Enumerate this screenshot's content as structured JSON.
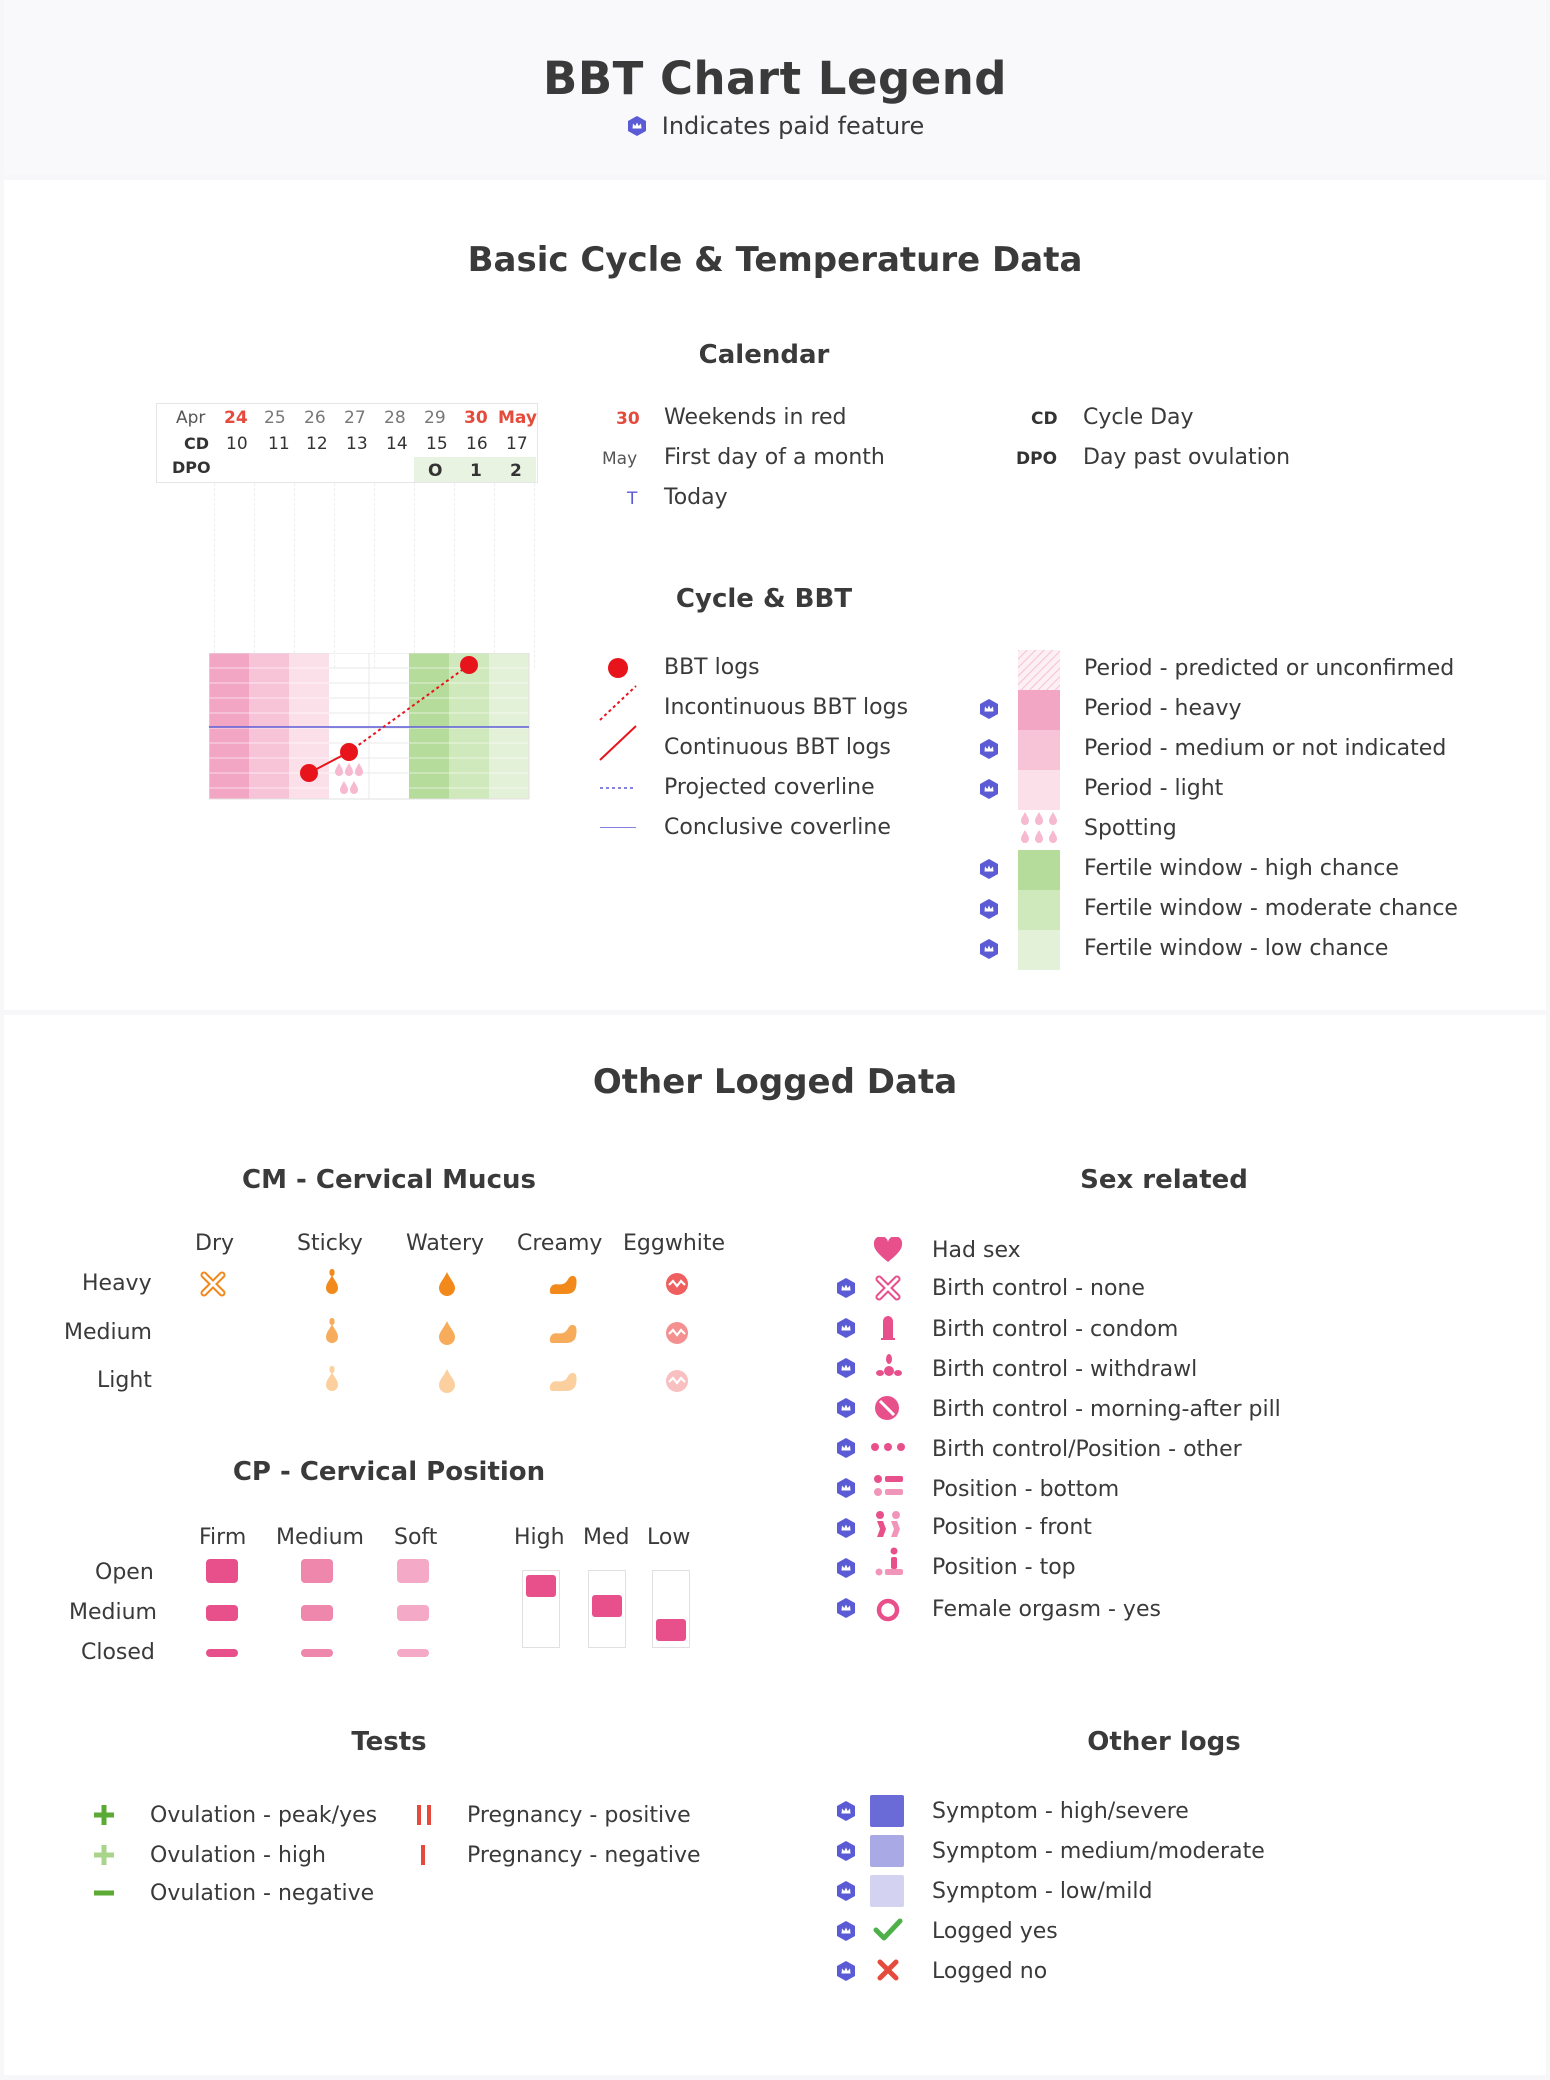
{
  "title": "BBT Chart Legend",
  "paid_note": "Indicates paid feature",
  "basic_section": {
    "title": "Basic Cycle & Temperature Data",
    "calendar": {
      "title": "Calendar",
      "months": [
        "Apr",
        "May"
      ],
      "days": [
        "24",
        "25",
        "26",
        "27",
        "28",
        "29",
        "30"
      ],
      "cd_label": "CD",
      "cd_values": [
        "10",
        "11",
        "12",
        "13",
        "14",
        "15",
        "16",
        "17"
      ],
      "dpo_label": "DPO",
      "dpo_values": [
        "O",
        "1",
        "2"
      ],
      "legend": [
        {
          "key": "30",
          "text": "Weekends in red"
        },
        {
          "key": "May",
          "text": "First day of a month"
        },
        {
          "key": "T",
          "text": "Today"
        },
        {
          "key": "CD",
          "text": "Cycle Day"
        },
        {
          "key": "DPO",
          "text": "Day past ovulation"
        }
      ]
    },
    "cycle_bbt": {
      "title": "Cycle & BBT",
      "line_legend": [
        "BBT logs",
        "Incontinuous BBT logs",
        "Continuous BBT logs",
        "Projected coverline",
        "Conclusive coverline"
      ],
      "fill_legend": [
        {
          "text": "Period - predicted or unconfirmed",
          "paid": false
        },
        {
          "text": "Period - heavy",
          "paid": true
        },
        {
          "text": "Period - medium or not indicated",
          "paid": true
        },
        {
          "text": "Period - light",
          "paid": true
        },
        {
          "text": "Spotting",
          "paid": false
        },
        {
          "text": "Fertile window - high chance",
          "paid": true
        },
        {
          "text": "Fertile window - moderate chance",
          "paid": true
        },
        {
          "text": "Fertile window - low chance",
          "paid": true
        }
      ]
    }
  },
  "other_section": {
    "title": "Other Logged Data",
    "cm": {
      "title": "CM - Cervical Mucus",
      "columns": [
        "Dry",
        "Sticky",
        "Watery",
        "Creamy",
        "Eggwhite"
      ],
      "rows": [
        "Heavy",
        "Medium",
        "Light"
      ]
    },
    "cp": {
      "title": "CP - Cervical Position",
      "columns": [
        "Firm",
        "Medium",
        "Soft"
      ],
      "rows": [
        "Open",
        "Medium",
        "Closed"
      ],
      "height_columns": [
        "High",
        "Med",
        "Low"
      ]
    },
    "tests": {
      "title": "Tests",
      "left": [
        "Ovulation - peak/yes",
        "Ovulation - high",
        "Ovulation - negative"
      ],
      "right": [
        "Pregnancy - positive",
        "Pregnancy - negative"
      ]
    },
    "sex": {
      "title": "Sex related",
      "items": [
        {
          "icon": "heart-icon",
          "text": "Had sex",
          "paid": false
        },
        {
          "icon": "x-outline-icon",
          "text": "Birth control - none",
          "paid": true
        },
        {
          "icon": "condom-icon",
          "text": "Birth control - condom",
          "paid": true
        },
        {
          "icon": "withdrawal-icon",
          "text": "Birth control - withdrawl",
          "paid": true
        },
        {
          "icon": "pill-icon",
          "text": "Birth control - morning-after pill",
          "paid": true
        },
        {
          "icon": "dots-icon",
          "text": "Birth control/Position - other",
          "paid": true
        },
        {
          "icon": "position-bottom-icon",
          "text": "Position - bottom",
          "paid": true
        },
        {
          "icon": "position-front-icon",
          "text": "Position - front",
          "paid": true
        },
        {
          "icon": "position-top-icon",
          "text": "Position - top",
          "paid": true
        },
        {
          "icon": "ring-icon",
          "text": "Female orgasm - yes",
          "paid": true
        }
      ]
    },
    "other_logs": {
      "title": "Other logs",
      "items": [
        {
          "icon": "square-dark-icon",
          "text": "Symptom - high/severe"
        },
        {
          "icon": "square-medium-icon",
          "text": "Symptom - medium/moderate"
        },
        {
          "icon": "square-light-icon",
          "text": "Symptom - low/mild"
        },
        {
          "icon": "check-icon",
          "text": "Logged yes"
        },
        {
          "icon": "cross-icon",
          "text": "Logged no"
        }
      ]
    }
  },
  "colors": {
    "accent_purple": "#5b5bd6",
    "period_heavy": "#f3a6c3",
    "period_medium": "#f7c3d7",
    "period_light": "#fbe0ea",
    "fertile_high": "#b5dc9a",
    "fertile_moderate": "#cfe8bc",
    "fertile_low": "#e3f1d8",
    "bbt_red": "#e8141c",
    "weekend_red": "#e54b3c",
    "cm_orange_heavy": "#f28a1b",
    "cp_pink": "#e8508c"
  }
}
